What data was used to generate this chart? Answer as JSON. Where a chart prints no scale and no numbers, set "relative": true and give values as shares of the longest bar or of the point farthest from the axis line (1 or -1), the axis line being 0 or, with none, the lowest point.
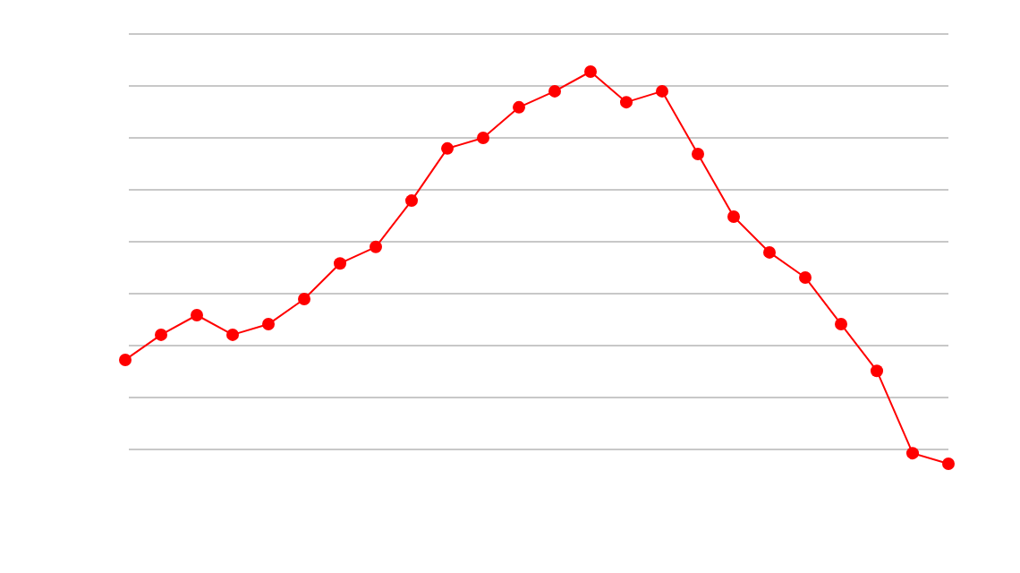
{
  "chart_data": {
    "type": "line",
    "relative": true,
    "grid": true,
    "marker": "circle",
    "line_style": "solid",
    "categories": [
      null,
      null,
      null,
      null,
      null,
      null,
      null,
      null,
      null,
      null,
      null,
      null,
      null,
      null,
      null,
      null,
      null,
      null,
      null,
      null,
      null,
      null,
      null,
      null
    ],
    "series": [
      {
        "color": "#ff0000",
        "values": [
          0.265,
          0.329,
          0.379,
          0.329,
          0.356,
          0.42,
          0.511,
          0.553,
          0.671,
          0.804,
          0.831,
          0.909,
          0.95,
          1,
          0.922,
          0.95,
          0.79,
          0.63,
          0.539,
          0.475,
          0.356,
          0.237,
          0.027,
          0
        ]
      }
    ]
  }
}
